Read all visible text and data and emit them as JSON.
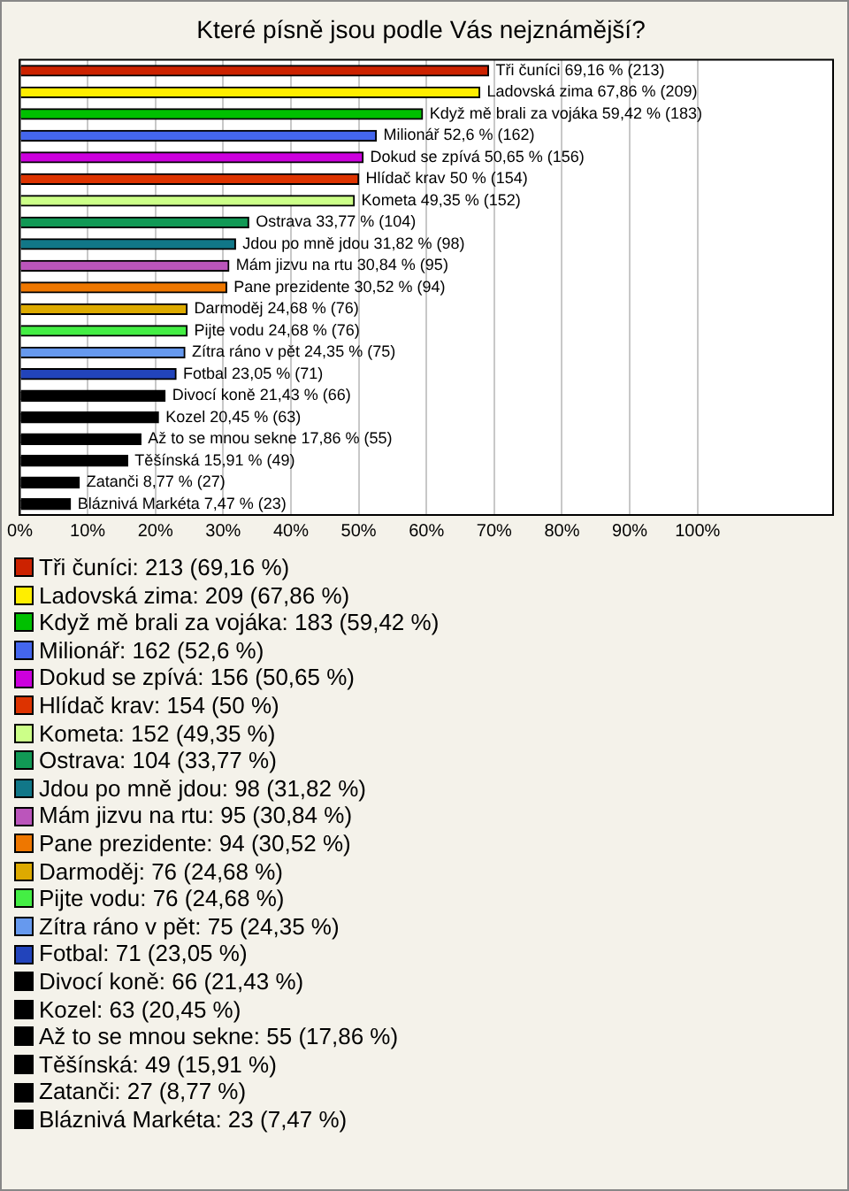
{
  "chart_data": {
    "type": "bar",
    "orientation": "horizontal",
    "stacked": true,
    "title": "Které písně jsou podle Vás nejznámější?",
    "categories": [
      null,
      null,
      null,
      null,
      null,
      null,
      null,
      null,
      null,
      null,
      null,
      null,
      null,
      null,
      null,
      null,
      null,
      null,
      null,
      null,
      null
    ],
    "xlim": [
      0,
      120
    ],
    "xticks": [
      {
        "value": 0,
        "label": "0%"
      },
      {
        "value": 10,
        "label": "10%"
      },
      {
        "value": 20,
        "label": "20%"
      },
      {
        "value": 30,
        "label": "30%"
      },
      {
        "value": 40,
        "label": "40%"
      },
      {
        "value": 50,
        "label": "50%"
      },
      {
        "value": 60,
        "label": "60%"
      },
      {
        "value": 70,
        "label": "70%"
      },
      {
        "value": 80,
        "label": "80%"
      },
      {
        "value": 90,
        "label": "90%"
      },
      {
        "value": 100,
        "label": "100%"
      }
    ],
    "grid": "x",
    "tick_labels": "x",
    "legend": "bottom",
    "series": [
      {
        "name": "Tři čuníci: 213 (69,16 %)",
        "color": "#cc2200",
        "values": [
          69.16,
          null,
          null,
          null,
          null,
          null,
          null,
          null,
          null,
          null,
          null,
          null,
          null,
          null,
          null,
          null,
          null,
          null,
          null,
          null,
          null
        ],
        "value_labels": [
          "Tři čuníci 69,16 % (213)",
          null,
          null,
          null,
          null,
          null,
          null,
          null,
          null,
          null,
          null,
          null,
          null,
          null,
          null,
          null,
          null,
          null,
          null,
          null,
          null
        ]
      },
      {
        "name": "Ladovská zima: 209 (67,86 %)",
        "color": "#ffee00",
        "values": [
          null,
          67.86,
          null,
          null,
          null,
          null,
          null,
          null,
          null,
          null,
          null,
          null,
          null,
          null,
          null,
          null,
          null,
          null,
          null,
          null,
          null
        ],
        "value_labels": [
          null,
          "Ladovská zima 67,86 % (209)",
          null,
          null,
          null,
          null,
          null,
          null,
          null,
          null,
          null,
          null,
          null,
          null,
          null,
          null,
          null,
          null,
          null,
          null,
          null
        ]
      },
      {
        "name": "Když mě brali za vojáka: 183 (59,42 %)",
        "color": "#00c000",
        "values": [
          null,
          null,
          59.42,
          null,
          null,
          null,
          null,
          null,
          null,
          null,
          null,
          null,
          null,
          null,
          null,
          null,
          null,
          null,
          null,
          null,
          null
        ],
        "value_labels": [
          null,
          null,
          "Když mě brali za vojáka 59,42 % (183)",
          null,
          null,
          null,
          null,
          null,
          null,
          null,
          null,
          null,
          null,
          null,
          null,
          null,
          null,
          null,
          null,
          null,
          null
        ]
      },
      {
        "name": "Milionář: 162 (52,6 %)",
        "color": "#4466ee",
        "values": [
          null,
          null,
          null,
          52.6,
          null,
          null,
          null,
          null,
          null,
          null,
          null,
          null,
          null,
          null,
          null,
          null,
          null,
          null,
          null,
          null,
          null
        ],
        "value_labels": [
          null,
          null,
          null,
          "Milionář 52,6 % (162)",
          null,
          null,
          null,
          null,
          null,
          null,
          null,
          null,
          null,
          null,
          null,
          null,
          null,
          null,
          null,
          null,
          null
        ]
      },
      {
        "name": "Dokud se zpívá: 156 (50,65 %)",
        "color": "#cc00dd",
        "values": [
          null,
          null,
          null,
          null,
          50.65,
          null,
          null,
          null,
          null,
          null,
          null,
          null,
          null,
          null,
          null,
          null,
          null,
          null,
          null,
          null,
          null
        ],
        "value_labels": [
          null,
          null,
          null,
          null,
          "Dokud se zpívá 50,65 % (156)",
          null,
          null,
          null,
          null,
          null,
          null,
          null,
          null,
          null,
          null,
          null,
          null,
          null,
          null,
          null,
          null
        ]
      },
      {
        "name": "Hlídač krav: 154 (50 %)",
        "color": "#dd3300",
        "values": [
          null,
          null,
          null,
          null,
          null,
          50,
          null,
          null,
          null,
          null,
          null,
          null,
          null,
          null,
          null,
          null,
          null,
          null,
          null,
          null,
          null
        ],
        "value_labels": [
          null,
          null,
          null,
          null,
          null,
          "Hlídač krav 50 % (154)",
          null,
          null,
          null,
          null,
          null,
          null,
          null,
          null,
          null,
          null,
          null,
          null,
          null,
          null,
          null
        ]
      },
      {
        "name": "Kometa: 152 (49,35 %)",
        "color": "#ccff88",
        "values": [
          null,
          null,
          null,
          null,
          null,
          null,
          49.35,
          null,
          null,
          null,
          null,
          null,
          null,
          null,
          null,
          null,
          null,
          null,
          null,
          null,
          null
        ],
        "value_labels": [
          null,
          null,
          null,
          null,
          null,
          null,
          "Kometa 49,35 % (152)",
          null,
          null,
          null,
          null,
          null,
          null,
          null,
          null,
          null,
          null,
          null,
          null,
          null,
          null
        ]
      },
      {
        "name": "Ostrava: 104 (33,77 %)",
        "color": "#119955",
        "values": [
          null,
          null,
          null,
          null,
          null,
          null,
          null,
          33.77,
          null,
          null,
          null,
          null,
          null,
          null,
          null,
          null,
          null,
          null,
          null,
          null,
          null
        ],
        "value_labels": [
          null,
          null,
          null,
          null,
          null,
          null,
          null,
          "Ostrava 33,77 % (104)",
          null,
          null,
          null,
          null,
          null,
          null,
          null,
          null,
          null,
          null,
          null,
          null,
          null
        ]
      },
      {
        "name": "Jdou po mně jdou: 98 (31,82 %)",
        "color": "#117788",
        "values": [
          null,
          null,
          null,
          null,
          null,
          null,
          null,
          null,
          31.82,
          null,
          null,
          null,
          null,
          null,
          null,
          null,
          null,
          null,
          null,
          null,
          null
        ],
        "value_labels": [
          null,
          null,
          null,
          null,
          null,
          null,
          null,
          null,
          "Jdou po mně jdou 31,82 % (98)",
          null,
          null,
          null,
          null,
          null,
          null,
          null,
          null,
          null,
          null,
          null,
          null
        ]
      },
      {
        "name": "Mám jizvu na rtu: 95 (30,84 %)",
        "color": "#bb55bb",
        "values": [
          null,
          null,
          null,
          null,
          null,
          null,
          null,
          null,
          null,
          30.84,
          null,
          null,
          null,
          null,
          null,
          null,
          null,
          null,
          null,
          null,
          null
        ],
        "value_labels": [
          null,
          null,
          null,
          null,
          null,
          null,
          null,
          null,
          null,
          "Mám jizvu na rtu 30,84 % (95)",
          null,
          null,
          null,
          null,
          null,
          null,
          null,
          null,
          null,
          null,
          null
        ]
      },
      {
        "name": "Pane prezidente: 94 (30,52 %)",
        "color": "#ee7700",
        "values": [
          null,
          null,
          null,
          null,
          null,
          null,
          null,
          null,
          null,
          null,
          30.52,
          null,
          null,
          null,
          null,
          null,
          null,
          null,
          null,
          null,
          null
        ],
        "value_labels": [
          null,
          null,
          null,
          null,
          null,
          null,
          null,
          null,
          null,
          null,
          "Pane prezidente 30,52 % (94)",
          null,
          null,
          null,
          null,
          null,
          null,
          null,
          null,
          null,
          null
        ]
      },
      {
        "name": "Darmoděj: 76 (24,68 %)",
        "color": "#ddaa00",
        "values": [
          null,
          null,
          null,
          null,
          null,
          null,
          null,
          null,
          null,
          null,
          null,
          24.68,
          null,
          null,
          null,
          null,
          null,
          null,
          null,
          null,
          null
        ],
        "value_labels": [
          null,
          null,
          null,
          null,
          null,
          null,
          null,
          null,
          null,
          null,
          null,
          "Darmoděj 24,68 % (76)",
          null,
          null,
          null,
          null,
          null,
          null,
          null,
          null,
          null
        ]
      },
      {
        "name": "Pijte vodu: 76 (24,68 %)",
        "color": "#44ee44",
        "values": [
          null,
          null,
          null,
          null,
          null,
          null,
          null,
          null,
          null,
          null,
          null,
          null,
          24.68,
          null,
          null,
          null,
          null,
          null,
          null,
          null,
          null
        ],
        "value_labels": [
          null,
          null,
          null,
          null,
          null,
          null,
          null,
          null,
          null,
          null,
          null,
          null,
          "Pijte vodu 24,68 % (76)",
          null,
          null,
          null,
          null,
          null,
          null,
          null,
          null
        ]
      },
      {
        "name": "Zítra ráno v pět: 75 (24,35 %)",
        "color": "#6699ee",
        "values": [
          null,
          null,
          null,
          null,
          null,
          null,
          null,
          null,
          null,
          null,
          null,
          null,
          null,
          24.35,
          null,
          null,
          null,
          null,
          null,
          null,
          null
        ],
        "value_labels": [
          null,
          null,
          null,
          null,
          null,
          null,
          null,
          null,
          null,
          null,
          null,
          null,
          null,
          "Zítra ráno v pět 24,35 % (75)",
          null,
          null,
          null,
          null,
          null,
          null,
          null
        ]
      },
      {
        "name": "Fotbal: 71 (23,05 %)",
        "color": "#2244bb",
        "values": [
          null,
          null,
          null,
          null,
          null,
          null,
          null,
          null,
          null,
          null,
          null,
          null,
          null,
          null,
          23.05,
          null,
          null,
          null,
          null,
          null,
          null
        ],
        "value_labels": [
          null,
          null,
          null,
          null,
          null,
          null,
          null,
          null,
          null,
          null,
          null,
          null,
          null,
          null,
          "Fotbal 23,05 % (71)",
          null,
          null,
          null,
          null,
          null,
          null
        ]
      },
      {
        "name": "Divocí koně: 66 (21,43 %)",
        "color": "#000000",
        "values": [
          null,
          null,
          null,
          null,
          null,
          null,
          null,
          null,
          null,
          null,
          null,
          null,
          null,
          null,
          null,
          21.43,
          null,
          null,
          null,
          null,
          null
        ],
        "value_labels": [
          null,
          null,
          null,
          null,
          null,
          null,
          null,
          null,
          null,
          null,
          null,
          null,
          null,
          null,
          null,
          "Divocí koně 21,43 % (66)",
          null,
          null,
          null,
          null,
          null
        ]
      },
      {
        "name": "Kozel: 63 (20,45 %)",
        "color": "#000000",
        "values": [
          null,
          null,
          null,
          null,
          null,
          null,
          null,
          null,
          null,
          null,
          null,
          null,
          null,
          null,
          null,
          null,
          20.45,
          null,
          null,
          null,
          null
        ],
        "value_labels": [
          null,
          null,
          null,
          null,
          null,
          null,
          null,
          null,
          null,
          null,
          null,
          null,
          null,
          null,
          null,
          null,
          "Kozel 20,45 % (63)",
          null,
          null,
          null,
          null
        ]
      },
      {
        "name": "Až to se mnou sekne: 55 (17,86 %)",
        "color": "#000000",
        "values": [
          null,
          null,
          null,
          null,
          null,
          null,
          null,
          null,
          null,
          null,
          null,
          null,
          null,
          null,
          null,
          null,
          null,
          17.86,
          null,
          null,
          null
        ],
        "value_labels": [
          null,
          null,
          null,
          null,
          null,
          null,
          null,
          null,
          null,
          null,
          null,
          null,
          null,
          null,
          null,
          null,
          null,
          "Až to se mnou sekne 17,86 % (55)",
          null,
          null,
          null
        ]
      },
      {
        "name": "Těšínská: 49 (15,91 %)",
        "color": "#000000",
        "values": [
          null,
          null,
          null,
          null,
          null,
          null,
          null,
          null,
          null,
          null,
          null,
          null,
          null,
          null,
          null,
          null,
          null,
          null,
          15.91,
          null,
          null
        ],
        "value_labels": [
          null,
          null,
          null,
          null,
          null,
          null,
          null,
          null,
          null,
          null,
          null,
          null,
          null,
          null,
          null,
          null,
          null,
          null,
          "Těšínská 15,91 % (49)",
          null,
          null
        ]
      },
      {
        "name": "Zatanči: 27 (8,77 %)",
        "color": "#000000",
        "values": [
          null,
          null,
          null,
          null,
          null,
          null,
          null,
          null,
          null,
          null,
          null,
          null,
          null,
          null,
          null,
          null,
          null,
          null,
          null,
          8.77,
          null
        ],
        "value_labels": [
          null,
          null,
          null,
          null,
          null,
          null,
          null,
          null,
          null,
          null,
          null,
          null,
          null,
          null,
          null,
          null,
          null,
          null,
          null,
          "Zatanči 8,77 % (27)",
          null
        ]
      },
      {
        "name": "Bláznivá Markéta: 23 (7,47 %)",
        "color": "#000000",
        "values": [
          null,
          null,
          null,
          null,
          null,
          null,
          null,
          null,
          null,
          null,
          null,
          null,
          null,
          null,
          null,
          null,
          null,
          null,
          null,
          null,
          7.47
        ],
        "value_labels": [
          null,
          null,
          null,
          null,
          null,
          null,
          null,
          null,
          null,
          null,
          null,
          null,
          null,
          null,
          null,
          null,
          null,
          null,
          null,
          null,
          "Bláznivá Markéta 7,47 % (23)"
        ]
      }
    ]
  }
}
